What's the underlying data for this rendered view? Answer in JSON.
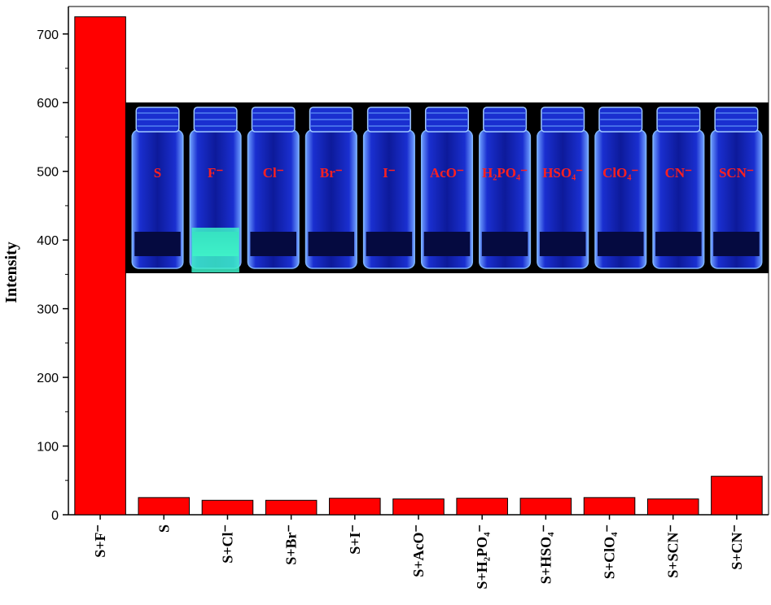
{
  "chart_data": {
    "type": "bar",
    "title": "",
    "xlabel": "",
    "ylabel": "Intensity",
    "ylim": [
      0,
      740
    ],
    "yticks": [
      0,
      100,
      200,
      300,
      400,
      500,
      600,
      700
    ],
    "categories": [
      "S+F⁻",
      "S",
      "S+Cl⁻",
      "S+Br⁻",
      "S+I⁻",
      "S+AcO⁻",
      "S+H₂PO₄⁻",
      "S+HSO₄⁻",
      "S+ClO₄⁻",
      "S+SCN⁻",
      "S+CN⁻"
    ],
    "values": [
      725,
      25,
      21,
      21,
      24,
      23,
      24,
      24,
      25,
      23,
      56
    ],
    "bar_color": "#ff0000",
    "grid": false,
    "legend": "none"
  },
  "inset_photo": {
    "description_colors": {
      "background": "#000000",
      "glow": "#2a4dff",
      "highlight": "#3cf0c8"
    },
    "vial_labels": [
      "S",
      "F⁻",
      "Cl⁻",
      "Br⁻",
      "I⁻",
      "AcO⁻",
      "H₂PO₄⁻",
      "HSO₄⁻",
      "ClO₄⁻",
      "CN⁻",
      "SCN⁻"
    ],
    "highlighted_vial": 1
  }
}
